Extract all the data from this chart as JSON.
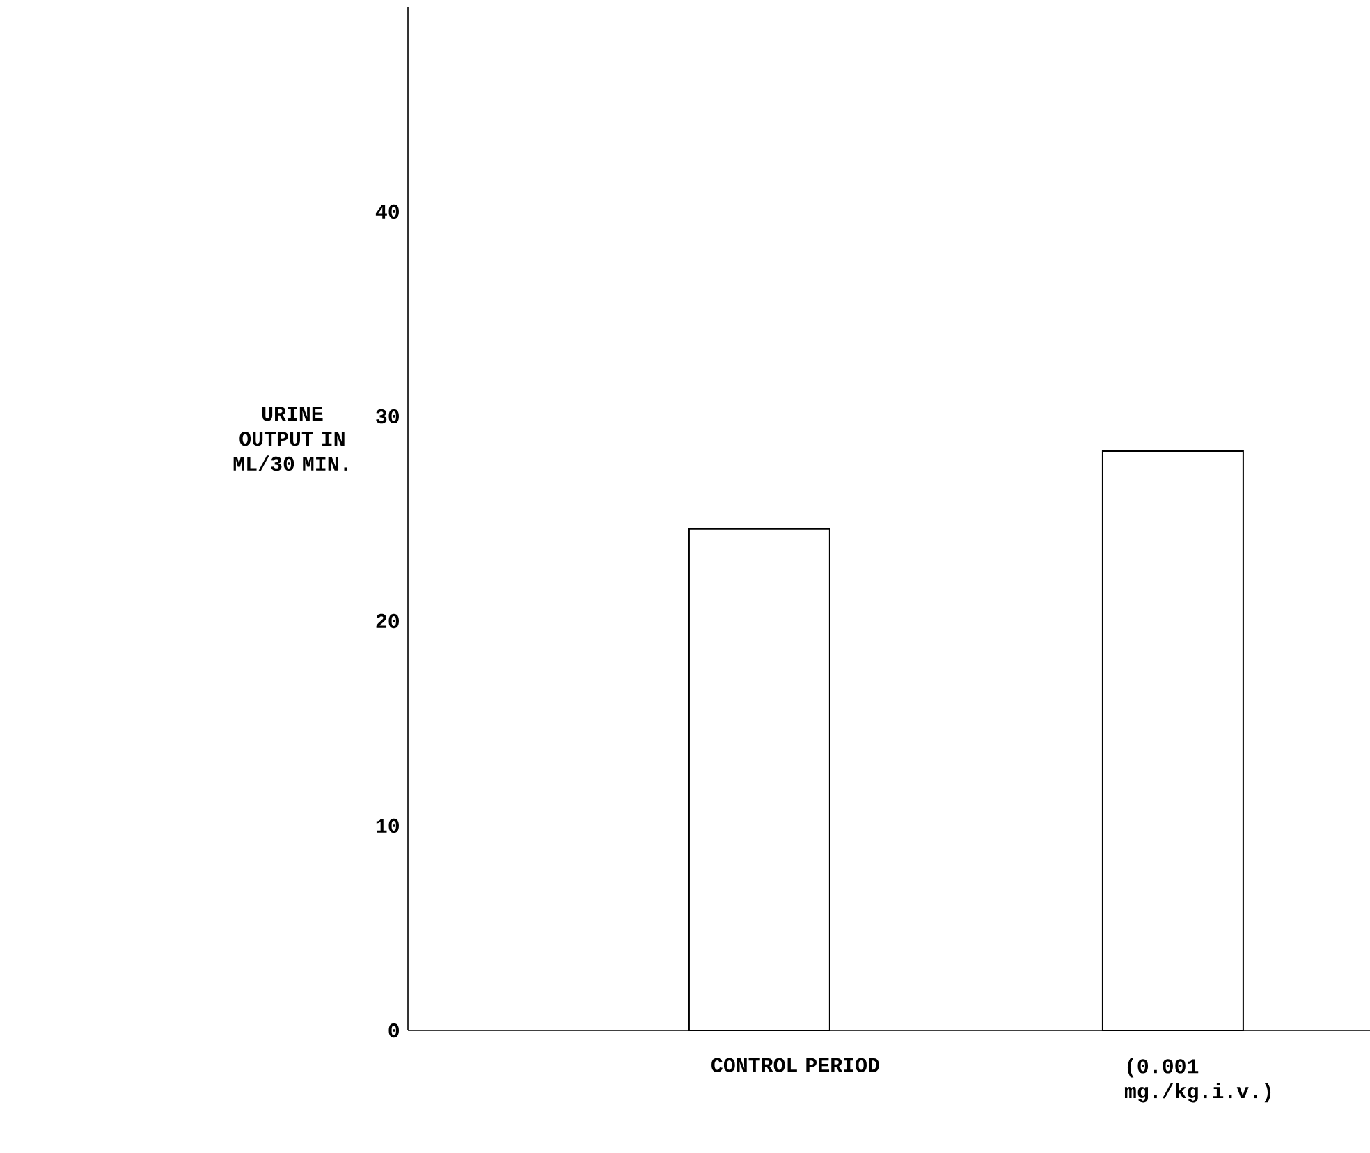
{
  "chart_data": {
    "type": "bar",
    "ylabel": "URINE OUTPUT IN ML/30 MIN.",
    "categories": [
      "CONTROL PERIOD",
      "(0.001 mg./kg.i.v.)"
    ],
    "values": [
      24.5,
      28.3
    ],
    "color": "#ffffff",
    "ylim": [
      0,
      50
    ],
    "yticks": [
      0,
      10,
      20,
      30,
      40
    ],
    "grid": false
  }
}
